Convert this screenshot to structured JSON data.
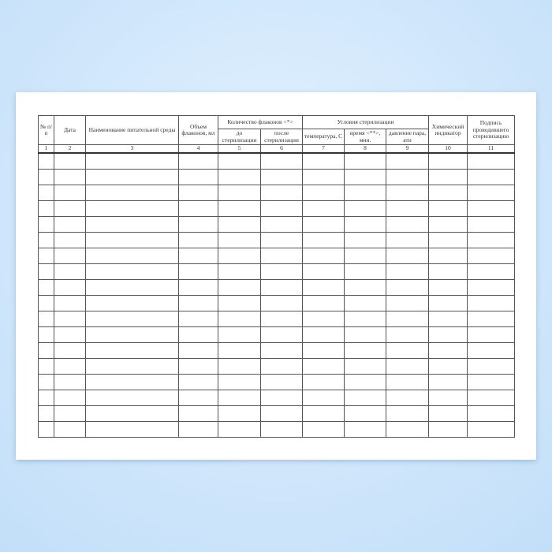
{
  "form": {
    "headers": {
      "num": "№ п/п",
      "date": "Дата",
      "medium": "Наименование питательной среды",
      "volume": "Объем флаконов, мл",
      "count_group": "Количество флаконов <*>",
      "before": "до стерилизации",
      "after": "после стерилизации",
      "conditions_group": "Условия стерилизации",
      "temperature": "температура, С",
      "time": "время <**>, мин.",
      "pressure": "давление пара, ати",
      "indicator": "Химический индикатор",
      "signature": "Подпись проводившего стерилизацию"
    },
    "column_numbers": [
      "1",
      "2",
      "3",
      "4",
      "5",
      "6",
      "7",
      "8",
      "9",
      "10",
      "11"
    ],
    "empty_rows": 18
  }
}
